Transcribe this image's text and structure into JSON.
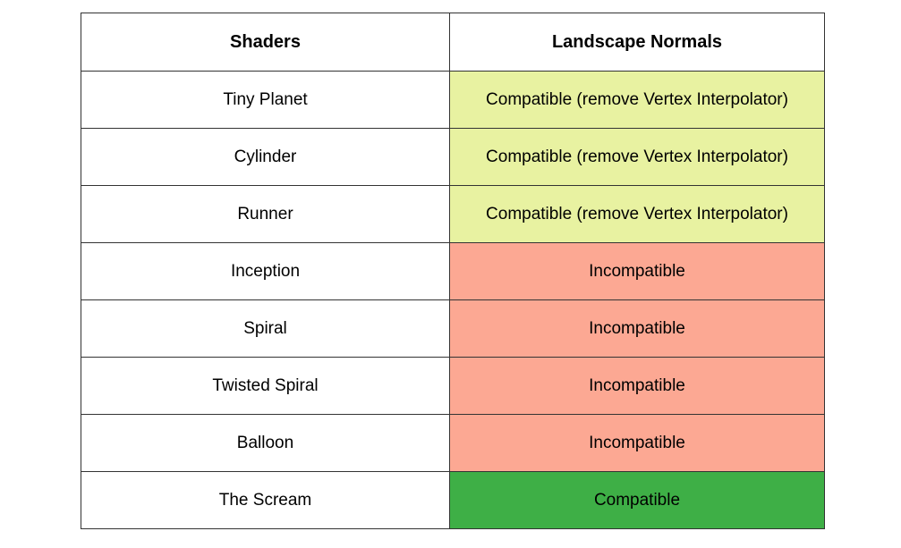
{
  "table": {
    "headers": [
      "Shaders",
      "Landscape Normals"
    ],
    "rows": [
      {
        "shader": "Tiny Planet",
        "status": "Compatible (remove Vertex Interpolator)",
        "level": "partial"
      },
      {
        "shader": "Cylinder",
        "status": "Compatible (remove Vertex Interpolator)",
        "level": "partial"
      },
      {
        "shader": "Runner",
        "status": "Compatible (remove Vertex Interpolator)",
        "level": "partial"
      },
      {
        "shader": "Inception",
        "status": "Incompatible",
        "level": "bad"
      },
      {
        "shader": "Spiral",
        "status": "Incompatible",
        "level": "bad"
      },
      {
        "shader": "Twisted Spiral",
        "status": "Incompatible",
        "level": "bad"
      },
      {
        "shader": "Balloon",
        "status": "Incompatible",
        "level": "bad"
      },
      {
        "shader": "The Scream",
        "status": "Compatible",
        "level": "good"
      }
    ]
  },
  "colors": {
    "partial": "#e8f2a1",
    "bad": "#fca893",
    "good": "#3eaf46",
    "border": "#333333"
  }
}
